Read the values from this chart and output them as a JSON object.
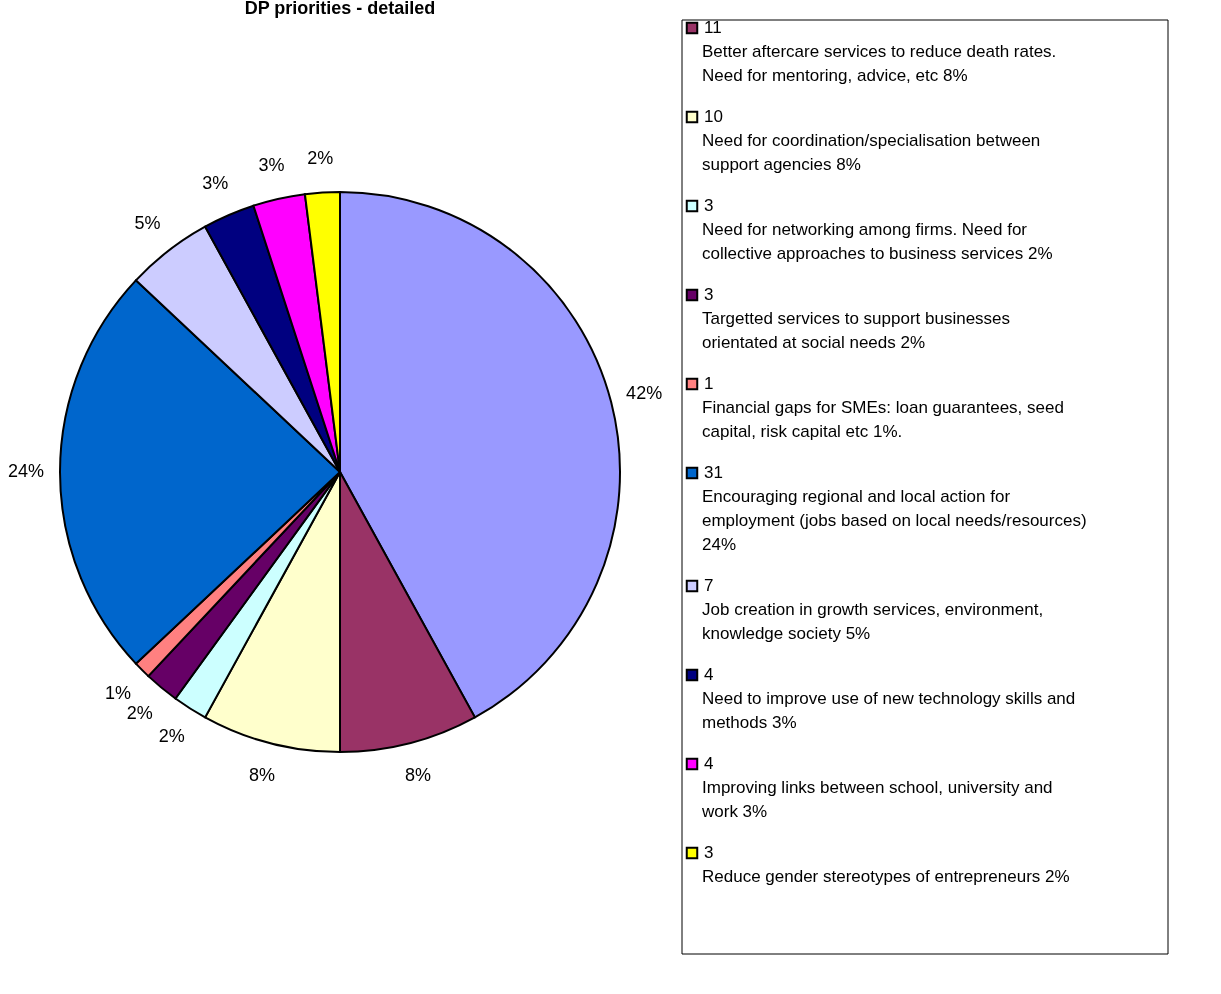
{
  "chart_data": {
    "type": "pie",
    "title": "DP priorities - detailed",
    "categories": [
      null,
      "11\nBetter aftercare services to reduce death rates.\nNeed for mentoring, advice, etc 8%",
      "10\nNeed for coordination/specialisation between\nsupport agencies 8%",
      "3\nNeed for networking among firms. Need for\ncollective approaches to business services 2%",
      "3\nTargetted services to support businesses\norientated at social needs 2%",
      "1\nFinancial gaps for SMEs: loan guarantees, seed\ncapital, risk capital etc 1%.",
      "31\nEncouraging regional and local action for\nemployment (jobs based on local needs/resources)\n24%",
      "7\nJob creation in growth services, environment,\nknowledge society 5%",
      "4\nNeed to improve use of  new technology skills and\nmethods 3%",
      "4\nImproving links between school, university and\nwork 3%",
      "3\nReduce gender stereotypes of entrepreneurs 2%"
    ],
    "values": [
      42,
      8,
      8,
      2,
      2,
      1,
      24,
      5,
      3,
      3,
      2
    ],
    "value_labels": [
      "42%",
      "8%",
      "8%",
      "2%",
      "2%",
      "1%",
      "24%",
      "5%",
      "3%",
      "3%",
      "2%"
    ],
    "colors": [
      "#9999ff",
      "#993366",
      "#ffffcc",
      "#ccffff",
      "#660066",
      "#ff8080",
      "#0066cc",
      "#ccccff",
      "#000080",
      "#ff00ff",
      "#ffff00"
    ],
    "legend": "right"
  }
}
